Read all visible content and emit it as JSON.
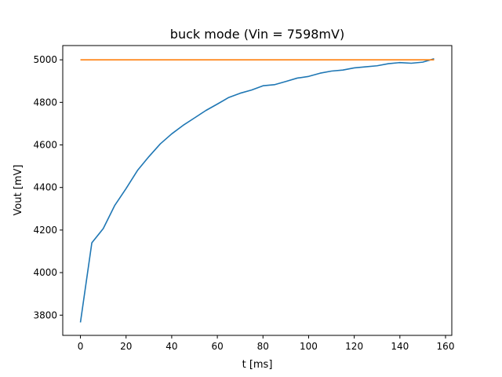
{
  "chart_data": {
    "type": "line",
    "title": "buck mode (Vin = 7598mV)",
    "xlabel": "t [ms]",
    "ylabel": "Vout [mV]",
    "xlim": [
      -7.75,
      162.75
    ],
    "ylim": [
      3705,
      5067
    ],
    "xticks": [
      0,
      20,
      40,
      60,
      80,
      100,
      120,
      140,
      160
    ],
    "yticks": [
      3800,
      4000,
      4200,
      4400,
      4600,
      4800,
      5000
    ],
    "grid": false,
    "legend": "none",
    "series": [
      {
        "color": "#1f77b4",
        "x": [
          0,
          5,
          10,
          15,
          20,
          25,
          30,
          35,
          40,
          45,
          50,
          55,
          60,
          65,
          70,
          75,
          80,
          85,
          90,
          95,
          100,
          105,
          110,
          115,
          120,
          125,
          130,
          135,
          140,
          145,
          150,
          155
        ],
        "y": [
          3766,
          4140,
          4207,
          4315,
          4395,
          4480,
          4545,
          4605,
          4652,
          4692,
          4727,
          4762,
          4792,
          4823,
          4843,
          4858,
          4878,
          4883,
          4898,
          4914,
          4922,
          4937,
          4947,
          4952,
          4962,
          4967,
          4972,
          4982,
          4987,
          4984,
          4989,
          5005
        ]
      },
      {
        "color": "#ff7f0e",
        "x": [
          0,
          155
        ],
        "y": [
          5000,
          5000
        ]
      }
    ]
  }
}
